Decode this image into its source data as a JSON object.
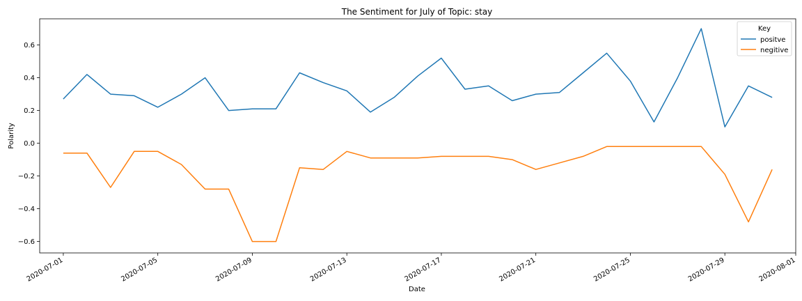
{
  "chart_data": {
    "type": "line",
    "title": "The Sentiment for July of Topic: stay",
    "xlabel": "Date",
    "ylabel": "Polarity",
    "x": [
      "2020-07-01",
      "2020-07-02",
      "2020-07-03",
      "2020-07-04",
      "2020-07-05",
      "2020-07-06",
      "2020-07-07",
      "2020-07-08",
      "2020-07-09",
      "2020-07-10",
      "2020-07-11",
      "2020-07-12",
      "2020-07-13",
      "2020-07-14",
      "2020-07-15",
      "2020-07-16",
      "2020-07-17",
      "2020-07-18",
      "2020-07-19",
      "2020-07-20",
      "2020-07-21",
      "2020-07-22",
      "2020-07-23",
      "2020-07-24",
      "2020-07-25",
      "2020-07-26",
      "2020-07-27",
      "2020-07-28",
      "2020-07-29",
      "2020-07-30",
      "2020-07-31"
    ],
    "xlim": [
      "2020-06-30",
      "2020-08-01"
    ],
    "x_ticks": [
      "2020-07-01",
      "2020-07-05",
      "2020-07-09",
      "2020-07-13",
      "2020-07-17",
      "2020-07-21",
      "2020-07-25",
      "2020-07-29",
      "2020-08-01"
    ],
    "ylim": [
      -0.67,
      0.76
    ],
    "y_ticks": [
      -0.6,
      -0.4,
      -0.2,
      0.0,
      0.2,
      0.4,
      0.6
    ],
    "y_tick_labels": [
      "−0.6",
      "−0.4",
      "−0.2",
      "0.0",
      "0.2",
      "0.4",
      "0.6"
    ],
    "grid": false,
    "legend": {
      "title": "Key",
      "placement": "top-right"
    },
    "series": [
      {
        "name": "positve",
        "color": "#1f77b4",
        "values": [
          0.27,
          0.42,
          0.3,
          0.29,
          0.22,
          0.3,
          0.4,
          0.2,
          0.21,
          0.21,
          0.43,
          0.37,
          0.32,
          0.19,
          0.28,
          0.41,
          0.52,
          0.33,
          0.35,
          0.26,
          0.3,
          0.31,
          0.43,
          0.55,
          0.38,
          0.13,
          0.4,
          0.7,
          0.1,
          0.35,
          0.28
        ]
      },
      {
        "name": "negitive",
        "color": "#ff7f0e",
        "values": [
          -0.06,
          -0.06,
          -0.27,
          -0.05,
          -0.05,
          -0.13,
          -0.28,
          -0.28,
          -0.6,
          -0.6,
          -0.15,
          -0.16,
          -0.05,
          -0.09,
          -0.09,
          -0.09,
          -0.08,
          -0.08,
          -0.08,
          -0.1,
          -0.16,
          -0.12,
          -0.08,
          -0.02,
          -0.02,
          -0.02,
          -0.02,
          -0.02,
          -0.19,
          -0.48,
          -0.16
        ]
      }
    ]
  }
}
